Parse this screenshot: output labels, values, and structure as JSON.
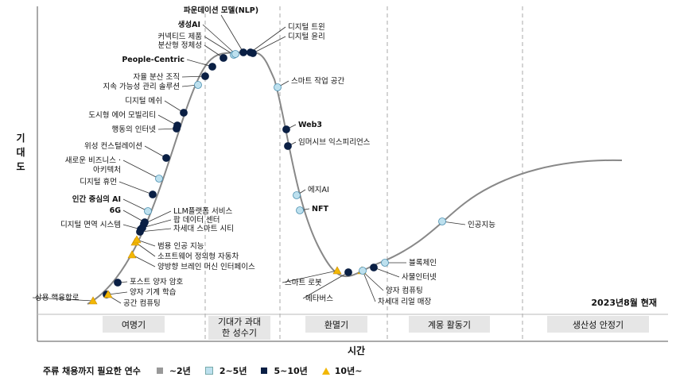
{
  "axes": {
    "y_label": "기대도",
    "x_label": "시간"
  },
  "as_of": "2023년8월 현재",
  "phases": [
    "여명기",
    "기대가 과대\n한 성수기",
    "환멸기",
    "계몽 활동기",
    "생산성 안정기"
  ],
  "legend": {
    "title": "주류 채용까지 필요한 연수",
    "items": [
      {
        "label": "~2년",
        "color": "#999999",
        "shape": "square"
      },
      {
        "label": "2~5년",
        "color": "#bde0ee",
        "shape": "square"
      },
      {
        "label": "5~10년",
        "color": "#0a1f44",
        "shape": "square"
      },
      {
        "label": "10년~",
        "color": "#f2b705",
        "shape": "triangle"
      }
    ]
  },
  "technologies": [
    {
      "label": "상용 핵융합로",
      "category": "10년~"
    },
    {
      "label": "공간 컴퓨팅",
      "category": "5~10년"
    },
    {
      "label": "양자 기계 학습",
      "category": "10년~"
    },
    {
      "label": "포스트 양자 암호",
      "category": "5~10년"
    },
    {
      "label": "양방향 브레인 머신 인터페이스",
      "category": "10년~"
    },
    {
      "label": "소프트웨어 정의형 자동차",
      "category": "10년~"
    },
    {
      "label": "범용 인공 지능",
      "category": "10년~"
    },
    {
      "label": "차세대 스마트 시티",
      "category": "5~10년"
    },
    {
      "label": "디지털 면역 시스템",
      "category": "5~10년"
    },
    {
      "label": "팝 데이터 센터",
      "category": "5~10년"
    },
    {
      "label": "LLM플랫폼 서비스",
      "category": "5~10년"
    },
    {
      "label": "6G",
      "category": "5~10년"
    },
    {
      "label": "인간 중심의 AI",
      "category": "2~5년"
    },
    {
      "label": "디지털 휴먼",
      "category": "5~10년"
    },
    {
      "label": "새로운 비즈니스 · 아키텍처",
      "category": "2~5년"
    },
    {
      "label": "위성 컨스털레이션",
      "category": "5~10년"
    },
    {
      "label": "행동의 인터넷",
      "category": "5~10년"
    },
    {
      "label": "도시형 에어 모빌리티",
      "category": "5~10년"
    },
    {
      "label": "디지털 메쉬",
      "category": "5~10년"
    },
    {
      "label": "지속 가능성 관리 솔루션",
      "category": "2~5년"
    },
    {
      "label": "자율 분산 조직",
      "category": "5~10년"
    },
    {
      "label": "People-Centric",
      "category": "5~10년"
    },
    {
      "label": "분산형 정체성",
      "category": "5~10년"
    },
    {
      "label": "커넥티드 제품",
      "category": "2~5년"
    },
    {
      "label": "생성AI",
      "category": "2~5년"
    },
    {
      "label": "파운데이션 모델(NLP)",
      "category": "5~10년"
    },
    {
      "label": "디지털 트윈",
      "category": "5~10년"
    },
    {
      "label": "디지털 윤리",
      "category": "5~10년"
    },
    {
      "label": "스마트 작업 공간",
      "category": "2~5년"
    },
    {
      "label": "Web3",
      "category": "5~10년"
    },
    {
      "label": "임머시브 익스피리언스",
      "category": "5~10년"
    },
    {
      "label": "에지AI",
      "category": "2~5년"
    },
    {
      "label": "NFT",
      "category": "2~5년"
    },
    {
      "label": "스마트 로봇",
      "category": "10년~"
    },
    {
      "label": "메타버스",
      "category": "5~10년"
    },
    {
      "label": "양자 컴퓨팅",
      "category": "10년~"
    },
    {
      "label": "차세대 리얼 매장",
      "category": "2~5년"
    },
    {
      "label": "사물인터넷",
      "category": "5~10년"
    },
    {
      "label": "블록체인",
      "category": "2~5년"
    },
    {
      "label": "인공지능",
      "category": "2~5년"
    }
  ]
}
